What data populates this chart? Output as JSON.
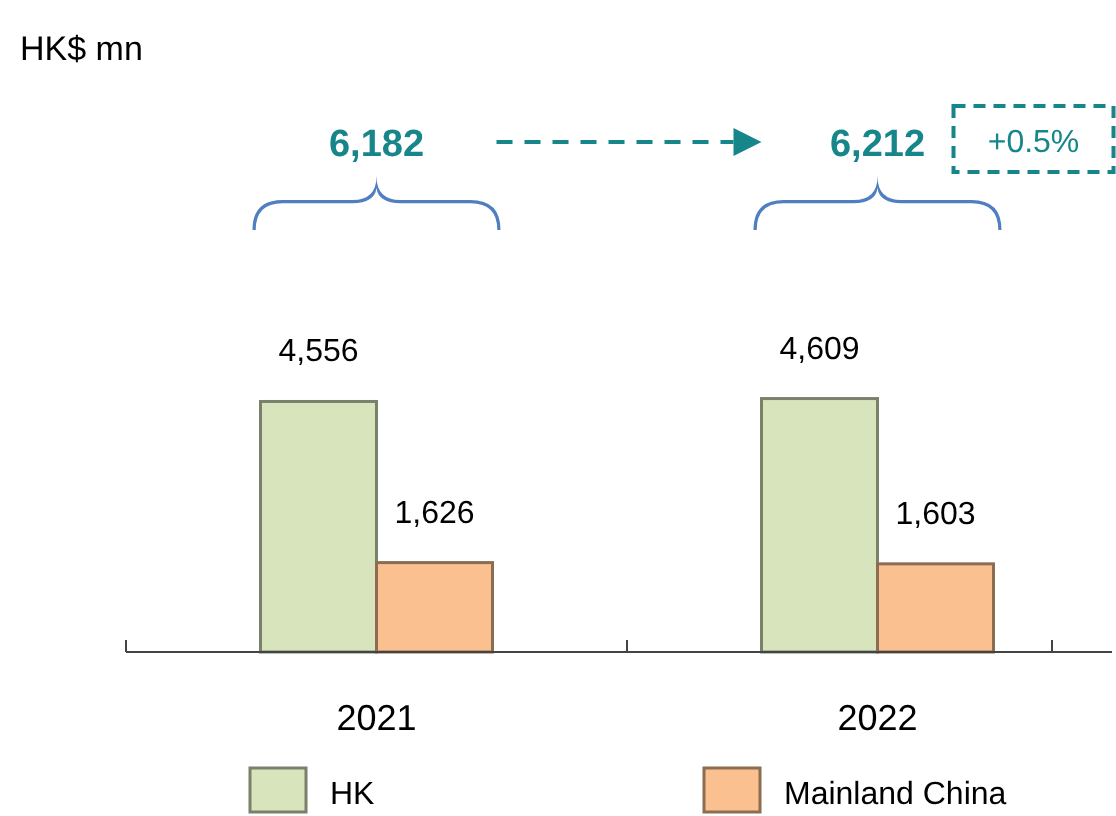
{
  "chart_data": {
    "type": "bar",
    "title": "HK$ mn",
    "categories": [
      "2021",
      "2022"
    ],
    "series": [
      {
        "name": "HK",
        "color": "#d8e4bc",
        "values": [
          4556,
          4609
        ],
        "value_labels": [
          "4,556",
          "4,609"
        ]
      },
      {
        "name": "Mainland China",
        "color": "#fac090",
        "values": [
          1626,
          1603
        ],
        "value_labels": [
          "1,626",
          "1,603"
        ]
      }
    ],
    "legend": "bottom",
    "grid": false,
    "annotations": [
      "6,182",
      "6,212",
      "+0.5%"
    ]
  }
}
